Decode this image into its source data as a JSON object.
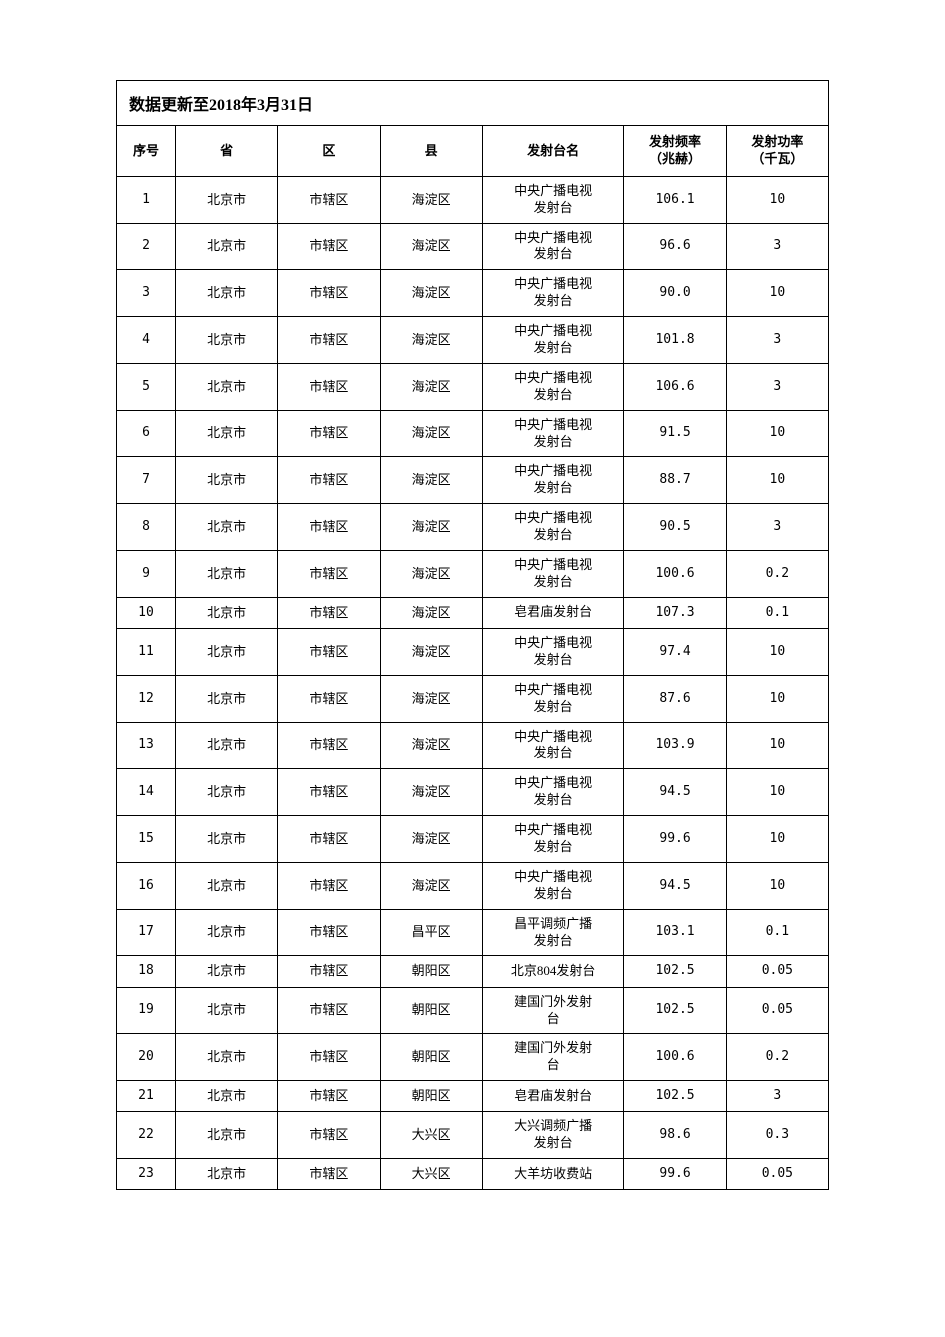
{
  "title": "数据更新至2018年3月31日",
  "table": {
    "background_color": "#ffffff",
    "border_color": "#000000",
    "header_fontsize": 13,
    "cell_fontsize": 13,
    "font_family": "SimSun",
    "columns": [
      {
        "key": "seq",
        "label": "序号",
        "width_pct": 7.5,
        "align": "center"
      },
      {
        "key": "province",
        "label": "省",
        "width_pct": 13,
        "align": "center"
      },
      {
        "key": "district",
        "label": "区",
        "width_pct": 13,
        "align": "center"
      },
      {
        "key": "county",
        "label": "县",
        "width_pct": 13,
        "align": "center"
      },
      {
        "key": "station",
        "label": "发射台名",
        "width_pct": 18,
        "align": "center"
      },
      {
        "key": "freq",
        "label_line1": "发射频率",
        "label_line2": "（兆赫）",
        "width_pct": 13,
        "align": "center"
      },
      {
        "key": "power",
        "label_line1": "发射功率",
        "label_line2": "（千瓦）",
        "width_pct": 13,
        "align": "center"
      }
    ],
    "rows": [
      {
        "seq": "1",
        "province": "北京市",
        "district": "市辖区",
        "county": "海淀区",
        "station_l1": "中央广播电视",
        "station_l2": "发射台",
        "freq": "106.1",
        "power": "10"
      },
      {
        "seq": "2",
        "province": "北京市",
        "district": "市辖区",
        "county": "海淀区",
        "station_l1": "中央广播电视",
        "station_l2": "发射台",
        "freq": "96.6",
        "power": "3"
      },
      {
        "seq": "3",
        "province": "北京市",
        "district": "市辖区",
        "county": "海淀区",
        "station_l1": "中央广播电视",
        "station_l2": "发射台",
        "freq": "90.0",
        "power": "10"
      },
      {
        "seq": "4",
        "province": "北京市",
        "district": "市辖区",
        "county": "海淀区",
        "station_l1": "中央广播电视",
        "station_l2": "发射台",
        "freq": "101.8",
        "power": "3"
      },
      {
        "seq": "5",
        "province": "北京市",
        "district": "市辖区",
        "county": "海淀区",
        "station_l1": "中央广播电视",
        "station_l2": "发射台",
        "freq": "106.6",
        "power": "3"
      },
      {
        "seq": "6",
        "province": "北京市",
        "district": "市辖区",
        "county": "海淀区",
        "station_l1": "中央广播电视",
        "station_l2": "发射台",
        "freq": "91.5",
        "power": "10"
      },
      {
        "seq": "7",
        "province": "北京市",
        "district": "市辖区",
        "county": "海淀区",
        "station_l1": "中央广播电视",
        "station_l2": "发射台",
        "freq": "88.7",
        "power": "10"
      },
      {
        "seq": "8",
        "province": "北京市",
        "district": "市辖区",
        "county": "海淀区",
        "station_l1": "中央广播电视",
        "station_l2": "发射台",
        "freq": "90.5",
        "power": "3"
      },
      {
        "seq": "9",
        "province": "北京市",
        "district": "市辖区",
        "county": "海淀区",
        "station_l1": "中央广播电视",
        "station_l2": "发射台",
        "freq": "100.6",
        "power": "0.2"
      },
      {
        "seq": "10",
        "province": "北京市",
        "district": "市辖区",
        "county": "海淀区",
        "station_l1": "皂君庙发射台",
        "station_l2": "",
        "freq": "107.3",
        "power": "0.1"
      },
      {
        "seq": "11",
        "province": "北京市",
        "district": "市辖区",
        "county": "海淀区",
        "station_l1": "中央广播电视",
        "station_l2": "发射台",
        "freq": "97.4",
        "power": "10"
      },
      {
        "seq": "12",
        "province": "北京市",
        "district": "市辖区",
        "county": "海淀区",
        "station_l1": "中央广播电视",
        "station_l2": "发射台",
        "freq": "87.6",
        "power": "10"
      },
      {
        "seq": "13",
        "province": "北京市",
        "district": "市辖区",
        "county": "海淀区",
        "station_l1": "中央广播电视",
        "station_l2": "发射台",
        "freq": "103.9",
        "power": "10"
      },
      {
        "seq": "14",
        "province": "北京市",
        "district": "市辖区",
        "county": "海淀区",
        "station_l1": "中央广播电视",
        "station_l2": "发射台",
        "freq": "94.5",
        "power": "10"
      },
      {
        "seq": "15",
        "province": "北京市",
        "district": "市辖区",
        "county": "海淀区",
        "station_l1": "中央广播电视",
        "station_l2": "发射台",
        "freq": "99.6",
        "power": "10"
      },
      {
        "seq": "16",
        "province": "北京市",
        "district": "市辖区",
        "county": "海淀区",
        "station_l1": "中央广播电视",
        "station_l2": "发射台",
        "freq": "94.5",
        "power": "10"
      },
      {
        "seq": "17",
        "province": "北京市",
        "district": "市辖区",
        "county": "昌平区",
        "station_l1": "昌平调频广播",
        "station_l2": "发射台",
        "freq": "103.1",
        "power": "0.1"
      },
      {
        "seq": "18",
        "province": "北京市",
        "district": "市辖区",
        "county": "朝阳区",
        "station_l1": "北京804发射台",
        "station_l2": "",
        "freq": "102.5",
        "power": "0.05"
      },
      {
        "seq": "19",
        "province": "北京市",
        "district": "市辖区",
        "county": "朝阳区",
        "station_l1": "建国门外发射",
        "station_l2": "台",
        "freq": "102.5",
        "power": "0.05"
      },
      {
        "seq": "20",
        "province": "北京市",
        "district": "市辖区",
        "county": "朝阳区",
        "station_l1": "建国门外发射",
        "station_l2": "台",
        "freq": "100.6",
        "power": "0.2"
      },
      {
        "seq": "21",
        "province": "北京市",
        "district": "市辖区",
        "county": "朝阳区",
        "station_l1": "皂君庙发射台",
        "station_l2": "",
        "freq": "102.5",
        "power": "3"
      },
      {
        "seq": "22",
        "province": "北京市",
        "district": "市辖区",
        "county": "大兴区",
        "station_l1": "大兴调频广播",
        "station_l2": "发射台",
        "freq": "98.6",
        "power": "0.3"
      },
      {
        "seq": "23",
        "province": "北京市",
        "district": "市辖区",
        "county": "大兴区",
        "station_l1": "大羊坊收费站",
        "station_l2": "",
        "freq": "99.6",
        "power": "0.05"
      }
    ]
  }
}
